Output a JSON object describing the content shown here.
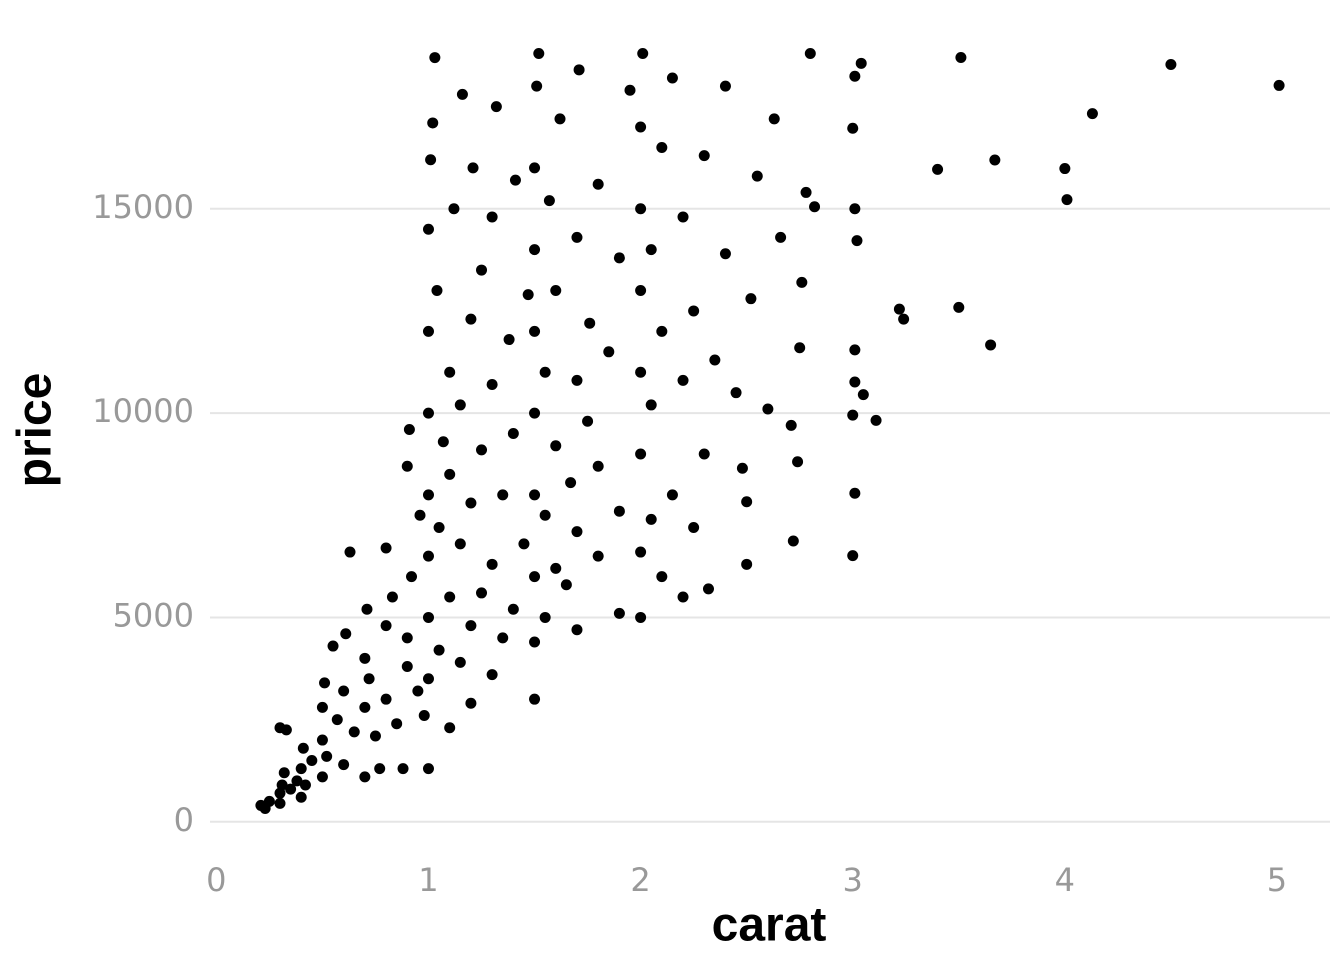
{
  "chart_data": {
    "type": "scatter",
    "x_label": "carat",
    "y_label": "price",
    "xlim": [
      -0.03,
      5.25
    ],
    "ylim": [
      -250,
      19350
    ],
    "xticks": [
      0,
      1,
      2,
      3,
      4,
      5
    ],
    "yticks": [
      0,
      5000,
      10000,
      15000
    ],
    "grid": "y",
    "color": "#000000",
    "x": [
      0.23,
      0.21,
      0.25,
      0.3,
      0.3,
      0.31,
      0.32,
      0.3,
      0.33,
      0.35,
      0.38,
      0.4,
      0.4,
      0.41,
      0.42,
      0.45,
      0.5,
      0.5,
      0.5,
      0.51,
      0.52,
      0.55,
      0.57,
      0.6,
      0.6,
      0.61,
      0.63,
      0.65,
      0.7,
      0.7,
      0.7,
      0.71,
      0.72,
      0.75,
      0.77,
      0.8,
      0.8,
      0.8,
      0.83,
      0.85,
      0.88,
      0.9,
      0.9,
      0.9,
      0.91,
      0.92,
      0.95,
      0.96,
      0.98,
      1.0,
      1.0,
      1.0,
      1.0,
      1.0,
      1.0,
      1.0,
      1.0,
      1.01,
      1.02,
      1.03,
      1.04,
      1.05,
      1.05,
      1.07,
      1.1,
      1.1,
      1.1,
      1.1,
      1.12,
      1.15,
      1.15,
      1.15,
      1.16,
      1.2,
      1.2,
      1.2,
      1.2,
      1.21,
      1.25,
      1.25,
      1.25,
      1.3,
      1.3,
      1.3,
      1.3,
      1.32,
      1.35,
      1.35,
      1.38,
      1.4,
      1.4,
      1.41,
      1.45,
      1.47,
      1.5,
      1.5,
      1.5,
      1.5,
      1.5,
      1.5,
      1.5,
      1.5,
      1.51,
      1.52,
      1.55,
      1.55,
      1.55,
      1.57,
      1.6,
      1.6,
      1.6,
      1.62,
      1.65,
      1.67,
      1.7,
      1.7,
      1.7,
      1.7,
      1.71,
      1.75,
      1.76,
      1.8,
      1.8,
      1.8,
      1.85,
      1.9,
      1.9,
      1.9,
      1.95,
      2.0,
      2.0,
      2.0,
      2.0,
      2.0,
      2.0,
      2.0,
      2.01,
      2.05,
      2.05,
      2.05,
      2.1,
      2.1,
      2.1,
      2.15,
      2.15,
      2.2,
      2.2,
      2.2,
      2.25,
      2.25,
      2.3,
      2.3,
      2.32,
      2.35,
      2.4,
      2.4,
      2.45,
      2.5,
      2.5,
      2.48,
      2.52,
      2.55,
      2.6,
      2.63,
      2.66,
      2.72,
      2.74,
      2.71,
      2.75,
      2.76,
      2.78,
      2.8,
      2.82,
      3.0,
      3.0,
      3.0,
      3.01,
      3.01,
      3.01,
      3.01,
      3.01,
      3.02,
      3.04,
      3.05,
      3.11,
      3.22,
      3.24,
      3.4,
      3.5,
      3.51,
      3.65,
      3.67,
      4.0,
      4.01,
      4.13,
      4.5,
      5.01
    ],
    "values": [
      326,
      400,
      500,
      450,
      700,
      900,
      1200,
      2300,
      2250,
      800,
      1000,
      600,
      1300,
      1800,
      900,
      1500,
      1100,
      2000,
      2800,
      3400,
      1600,
      4300,
      2500,
      1400,
      3200,
      4600,
      6600,
      2200,
      1100,
      2800,
      4000,
      5200,
      3500,
      2100,
      1300,
      3000,
      4800,
      6700,
      5500,
      2400,
      1300,
      3800,
      4500,
      8700,
      9600,
      6000,
      3200,
      7500,
      2600,
      1300,
      3500,
      5000,
      6500,
      8000,
      10000,
      12000,
      14500,
      16200,
      17100,
      18700,
      13000,
      4200,
      7200,
      9300,
      2300,
      5500,
      8500,
      11000,
      15000,
      3900,
      6800,
      10200,
      17800,
      2900,
      4800,
      7800,
      12300,
      16000,
      5600,
      9100,
      13500,
      3600,
      6300,
      10700,
      14800,
      17500,
      4500,
      8000,
      11800,
      5200,
      9500,
      15700,
      6800,
      12900,
      3000,
      4400,
      6000,
      8000,
      10000,
      12000,
      14000,
      16000,
      18000,
      18800,
      5000,
      7500,
      11000,
      15200,
      6200,
      9200,
      13000,
      17200,
      5800,
      8300,
      4700,
      7100,
      10800,
      14300,
      18400,
      9800,
      12200,
      6500,
      8700,
      15600,
      11500,
      5100,
      7600,
      13800,
      17900,
      5000,
      6600,
      9000,
      11000,
      13000,
      15000,
      17000,
      18800,
      7400,
      10200,
      14000,
      6000,
      12000,
      16500,
      8000,
      18200,
      5500,
      10800,
      14800,
      7200,
      12500,
      9000,
      16300,
      5700,
      11300,
      13900,
      18000,
      10500,
      6300,
      7830,
      8650,
      12800,
      15800,
      10100,
      17200,
      14300,
      6870,
      8810,
      9700,
      11600,
      13200,
      15400,
      18800,
      15050,
      6512,
      9950,
      16970,
      8040,
      10761,
      11548,
      15000,
      18242,
      14220,
      18559,
      10453,
      9823,
      12545,
      12300,
      15964,
      12587,
      18701,
      11668,
      16193,
      15984,
      15223,
      17329,
      18531,
      18018
    ]
  }
}
